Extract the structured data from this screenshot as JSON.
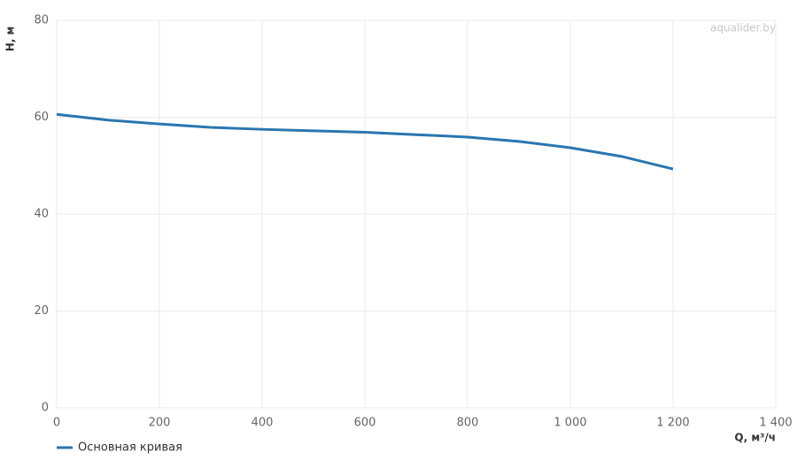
{
  "chart_data": {
    "type": "line",
    "watermark": "aqualider.by",
    "x_label": "Q, м³/ч",
    "y_label": "H, м",
    "x": [
      0,
      100,
      200,
      300,
      400,
      500,
      600,
      700,
      800,
      900,
      1000,
      1100,
      1200
    ],
    "series": [
      {
        "name": "Основная кривая",
        "color": "#2a76b0",
        "values": [
          60.6,
          59.4,
          58.6,
          57.9,
          57.5,
          57.2,
          56.9,
          56.4,
          55.9,
          55.0,
          53.7,
          51.9,
          49.3
        ]
      }
    ],
    "xlim": [
      0,
      1400
    ],
    "xticks": [
      0,
      200,
      400,
      600,
      800,
      {
        "value": 1000,
        "label": "1 000"
      },
      {
        "value": 1200,
        "label": "1 200"
      },
      {
        "value": 1400,
        "label": "1 400"
      }
    ],
    "ylim": [
      0,
      80
    ],
    "yticks": [
      0,
      20,
      40,
      60,
      80
    ],
    "grid": true,
    "legend": "bottom-left"
  }
}
